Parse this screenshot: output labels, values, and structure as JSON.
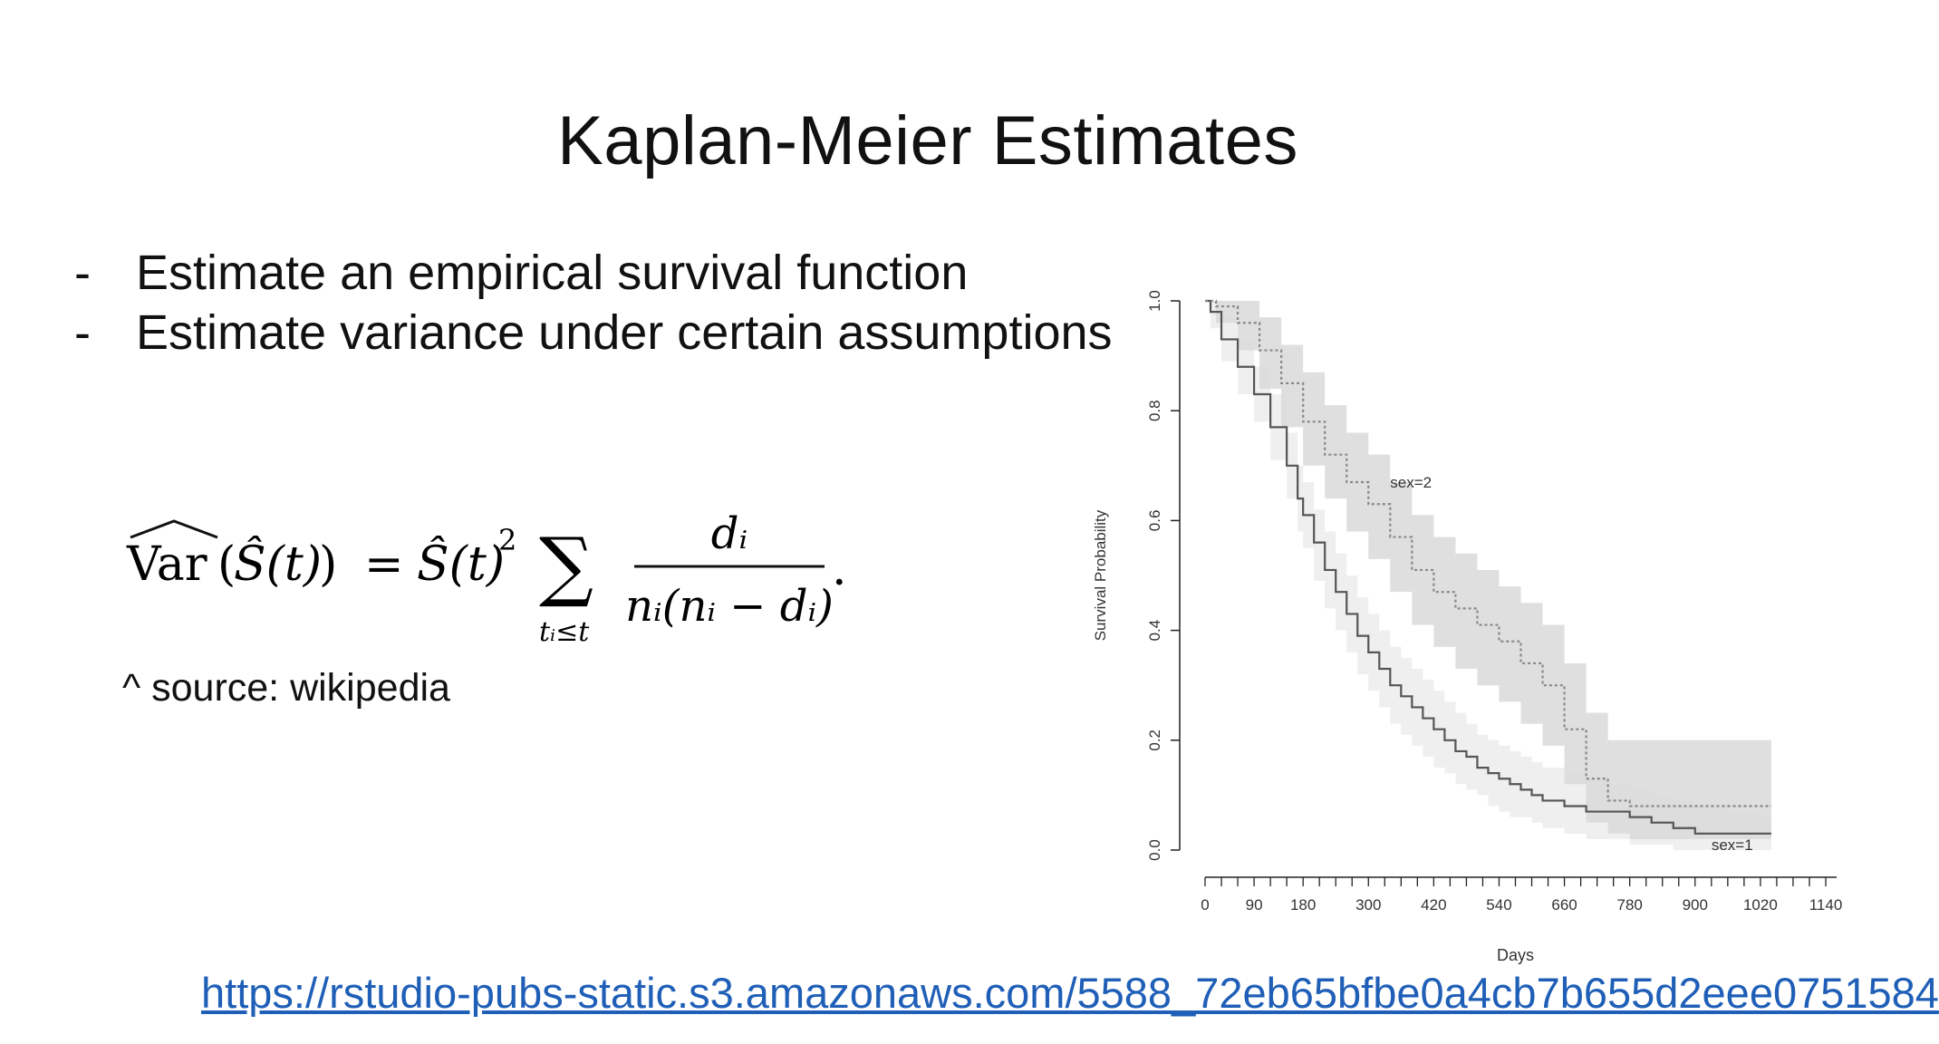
{
  "slide": {
    "title": "Kaplan-Meier Estimates",
    "bullets": [
      {
        "marker": "-",
        "text": "Estimate an empirical survival function"
      },
      {
        "marker": "-",
        "text": "Estimate variance under certain assumptions"
      }
    ],
    "formula": {
      "lhs": "Var",
      "inner": "Ŝ(t)",
      "equals": "=",
      "rhs_s": "Ŝ(t)",
      "exponent": "2",
      "sum": "∑",
      "sum_sub": "tᵢ≤t",
      "numerator": "dᵢ",
      "denominator": "nᵢ(nᵢ − dᵢ)",
      "end": "."
    },
    "source": "^ source: wikipedia",
    "link": "https://rstudio-pubs-static.s3.amazonaws.com/5588_72eb65bfbe0a4cb7b655d2eee0751584"
  },
  "chart_data": {
    "type": "line",
    "xlabel": "Days",
    "ylabel": "Survival Probability",
    "xlim": [
      0,
      1140
    ],
    "ylim": [
      0,
      1.0
    ],
    "x_ticks": [
      "0",
      "90",
      "180",
      "300",
      "420",
      "540",
      "660",
      "780",
      "900",
      "1020",
      "1140"
    ],
    "x_tick_values": [
      0,
      90,
      180,
      300,
      420,
      540,
      660,
      780,
      900,
      1020,
      1140
    ],
    "y_ticks": [
      "0.0",
      "0.2",
      "0.4",
      "0.6",
      "0.8",
      "1.0"
    ],
    "y_tick_values": [
      0,
      0.2,
      0.4,
      0.6,
      0.8,
      1.0
    ],
    "series": [
      {
        "name": "sex=1",
        "style": "solid",
        "color": "#555555",
        "band_color": "#ececec",
        "x": [
          0,
          10,
          30,
          60,
          90,
          120,
          150,
          170,
          180,
          200,
          220,
          240,
          260,
          280,
          300,
          320,
          340,
          360,
          380,
          400,
          420,
          440,
          460,
          480,
          500,
          520,
          540,
          560,
          580,
          600,
          620,
          660,
          700,
          740,
          780,
          820,
          860,
          900,
          960,
          1020
        ],
        "y": [
          1.0,
          0.98,
          0.93,
          0.88,
          0.83,
          0.77,
          0.7,
          0.64,
          0.61,
          0.56,
          0.51,
          0.47,
          0.43,
          0.39,
          0.36,
          0.33,
          0.3,
          0.28,
          0.26,
          0.24,
          0.22,
          0.2,
          0.18,
          0.17,
          0.15,
          0.14,
          0.13,
          0.12,
          0.11,
          0.1,
          0.09,
          0.08,
          0.07,
          0.07,
          0.06,
          0.05,
          0.04,
          0.03,
          0.03,
          0.03
        ],
        "lower": [
          1.0,
          0.95,
          0.89,
          0.83,
          0.78,
          0.71,
          0.64,
          0.58,
          0.55,
          0.49,
          0.44,
          0.4,
          0.36,
          0.32,
          0.29,
          0.26,
          0.23,
          0.21,
          0.19,
          0.17,
          0.15,
          0.14,
          0.12,
          0.11,
          0.1,
          0.08,
          0.07,
          0.06,
          0.06,
          0.05,
          0.04,
          0.03,
          0.02,
          0.02,
          0.01,
          0.01,
          0.0,
          0.0,
          0.0,
          0.0
        ],
        "upper": [
          1.0,
          1.0,
          0.97,
          0.93,
          0.88,
          0.83,
          0.76,
          0.7,
          0.67,
          0.62,
          0.58,
          0.54,
          0.5,
          0.46,
          0.43,
          0.4,
          0.37,
          0.35,
          0.33,
          0.31,
          0.29,
          0.27,
          0.25,
          0.23,
          0.21,
          0.2,
          0.19,
          0.18,
          0.17,
          0.16,
          0.15,
          0.14,
          0.13,
          0.12,
          0.11,
          0.1,
          0.09,
          0.08,
          0.07,
          0.06
        ]
      },
      {
        "name": "sex=2",
        "style": "dotted",
        "color": "#888888",
        "band_color": "#d9d9d9",
        "x": [
          0,
          20,
          60,
          100,
          140,
          180,
          220,
          260,
          300,
          340,
          380,
          420,
          460,
          500,
          540,
          580,
          620,
          660,
          700,
          740,
          780,
          820,
          860,
          900,
          960,
          1020
        ],
        "y": [
          1.0,
          0.99,
          0.96,
          0.91,
          0.85,
          0.78,
          0.72,
          0.67,
          0.63,
          0.57,
          0.51,
          0.47,
          0.44,
          0.41,
          0.38,
          0.34,
          0.3,
          0.22,
          0.13,
          0.09,
          0.08,
          0.08,
          0.08,
          0.08,
          0.08,
          0.08
        ],
        "lower": [
          1.0,
          0.96,
          0.91,
          0.84,
          0.77,
          0.7,
          0.64,
          0.58,
          0.53,
          0.47,
          0.41,
          0.37,
          0.33,
          0.3,
          0.27,
          0.23,
          0.19,
          0.12,
          0.05,
          0.03,
          0.02,
          0.02,
          0.02,
          0.02,
          0.02,
          0.02
        ],
        "upper": [
          1.0,
          1.0,
          1.0,
          0.97,
          0.92,
          0.87,
          0.81,
          0.76,
          0.72,
          0.67,
          0.61,
          0.57,
          0.54,
          0.51,
          0.48,
          0.45,
          0.41,
          0.34,
          0.25,
          0.2,
          0.2,
          0.2,
          0.2,
          0.2,
          0.2,
          0.2
        ]
      }
    ],
    "annotations": [
      "sex=2",
      "sex=1"
    ]
  }
}
